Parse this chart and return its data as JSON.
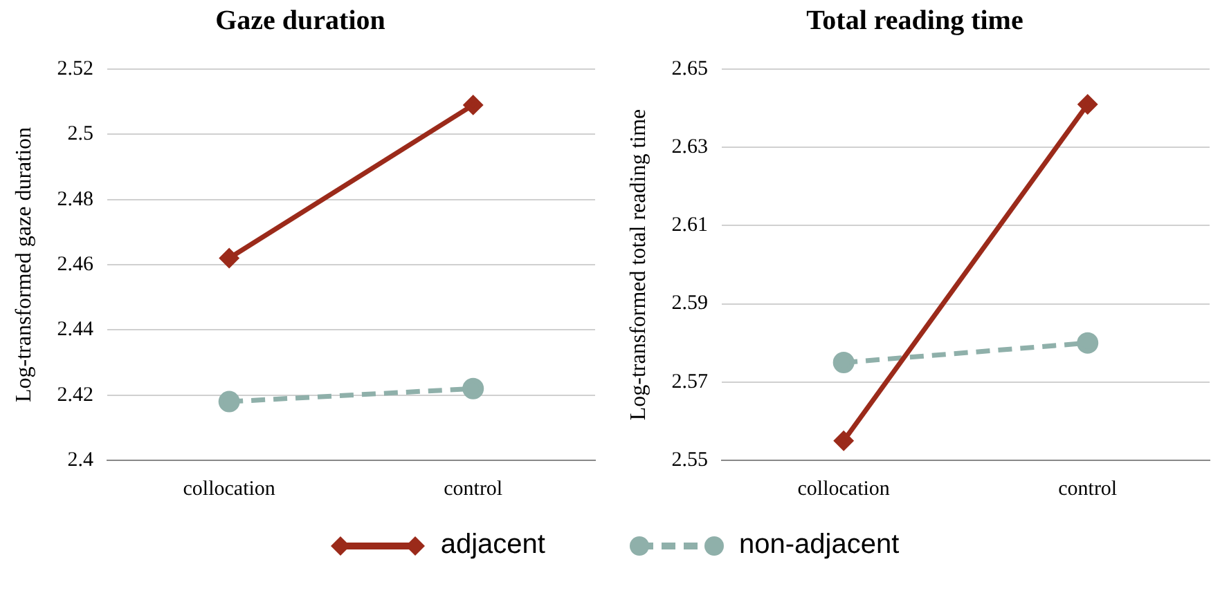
{
  "chart_data": [
    {
      "type": "line",
      "title": "Gaze duration",
      "ylabel": "Log-transformed gaze duration",
      "categories": [
        "collocation",
        "control"
      ],
      "ylim": [
        2.4,
        2.52
      ],
      "yticks": [
        2.4,
        2.42,
        2.44,
        2.46,
        2.48,
        2.5,
        2.52
      ],
      "grid": "y",
      "legend": "bottom",
      "series": [
        {
          "name": "adjacent",
          "color": "#9b2a1a",
          "values": [
            2.462,
            2.509
          ],
          "marker": "diamond",
          "line_style": "solid"
        },
        {
          "name": "non-adjacent",
          "color": "#8fb0aa",
          "values": [
            2.418,
            2.422
          ],
          "marker": "circle",
          "line_style": "dashed"
        }
      ]
    },
    {
      "type": "line",
      "title": "Total reading time",
      "ylabel": "Log-transformed total reading time",
      "categories": [
        "collocation",
        "control"
      ],
      "ylim": [
        2.55,
        2.65
      ],
      "yticks": [
        2.55,
        2.57,
        2.59,
        2.61,
        2.63,
        2.65
      ],
      "grid": "y",
      "series": [
        {
          "color": "#9b2a1a",
          "values": [
            2.555,
            2.641
          ],
          "marker": "diamond",
          "line_style": "solid"
        },
        {
          "color": "#8fb0aa",
          "values": [
            2.575,
            2.58
          ],
          "marker": "circle",
          "line_style": "dashed"
        }
      ]
    }
  ]
}
